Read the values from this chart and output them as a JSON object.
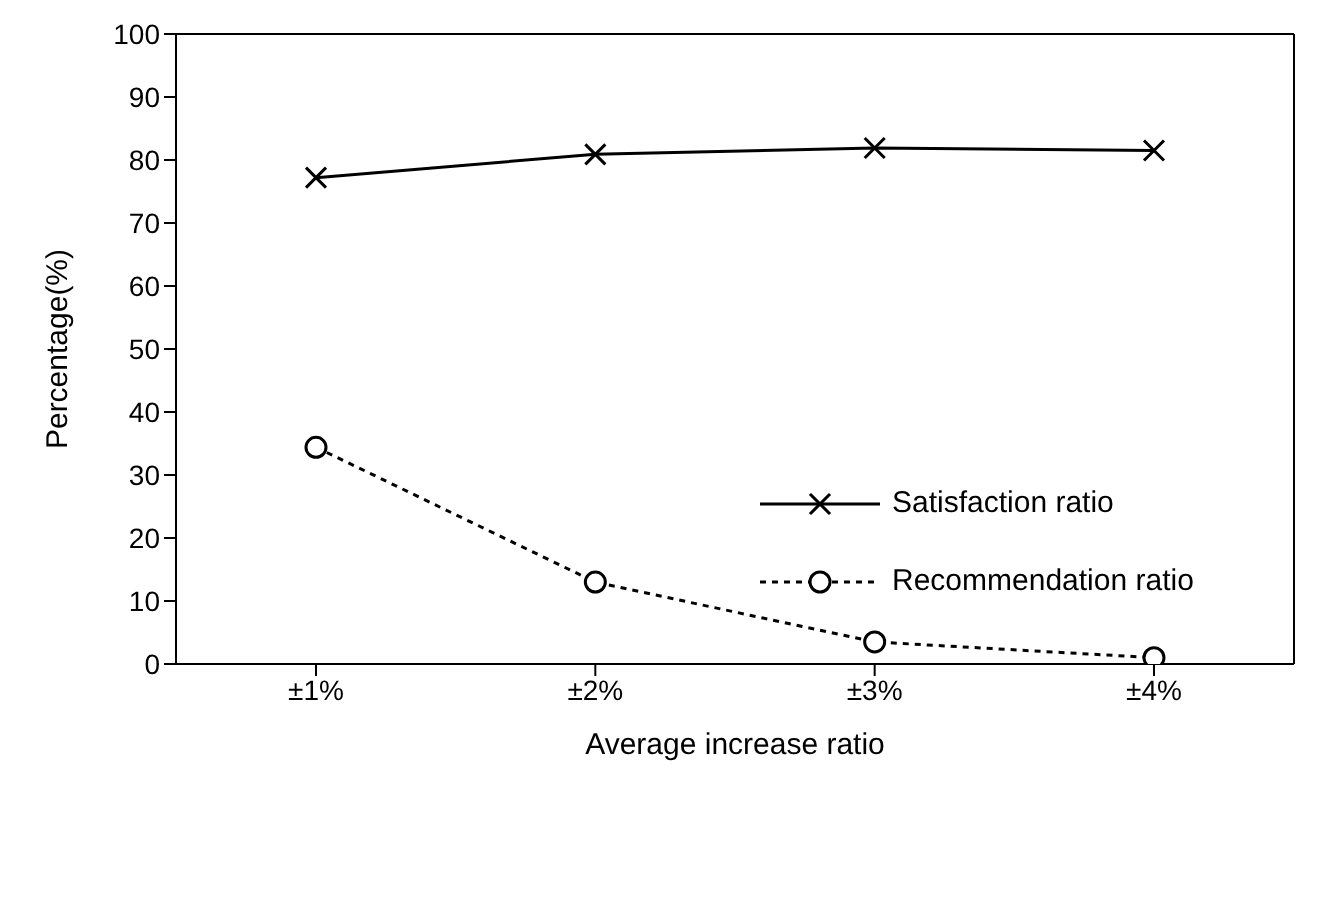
{
  "chart_data": {
    "type": "line",
    "xlabel": "Average increase ratio",
    "ylabel": "Percentage(%)",
    "categories": [
      "±1%",
      "±2%",
      "±3%",
      "±4%"
    ],
    "series": [
      {
        "name": "Satisfaction ratio",
        "color": "#000000",
        "values": [
          77.2,
          80.9,
          81.9,
          81.5
        ],
        "marker": "cross",
        "line_style": "solid"
      },
      {
        "name": "Recommendation ratio",
        "color": "#000000",
        "values": [
          34.4,
          13,
          3.5,
          1
        ],
        "marker": "circle",
        "line_style": "dotted"
      }
    ],
    "ylim": [
      0,
      100
    ],
    "yticks": [
      0,
      10,
      20,
      30,
      40,
      50,
      60,
      70,
      80,
      90,
      100
    ],
    "grid": false,
    "legend": "right"
  }
}
